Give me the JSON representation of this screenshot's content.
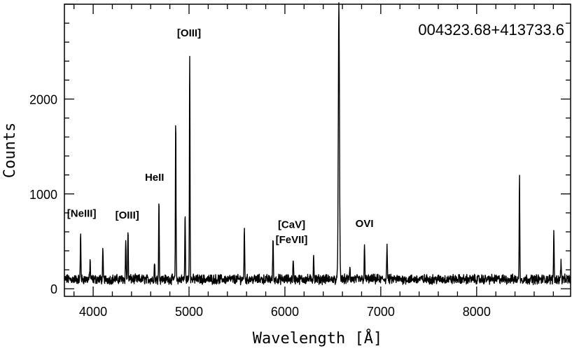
{
  "chart_data": {
    "type": "line",
    "title": "004323.68+413733.6",
    "xlabel": "Wavelength [Å]",
    "ylabel": "Counts",
    "xlim": [
      3700,
      8980
    ],
    "ylim": [
      -80,
      3000
    ],
    "x_ticks": [
      {
        "value": 4000,
        "label": "4000"
      },
      {
        "value": 5000,
        "label": "5000"
      },
      {
        "value": 6000,
        "label": "6000"
      },
      {
        "value": 7000,
        "label": "7000"
      },
      {
        "value": 8000,
        "label": "8000"
      }
    ],
    "y_ticks": [
      {
        "value": 0,
        "label": "0"
      },
      {
        "value": 1000,
        "label": "1000"
      },
      {
        "value": 2000,
        "label": "2000"
      }
    ],
    "continuum": 100,
    "noise_amplitude": 40,
    "series": [
      {
        "lines": [
          {
            "x": 3869,
            "y": 590
          },
          {
            "x": 3968,
            "y": 300
          },
          {
            "x": 4101,
            "y": 390
          },
          {
            "x": 4340,
            "y": 530
          },
          {
            "x": 4363,
            "y": 620
          },
          {
            "x": 4640,
            "y": 280
          },
          {
            "x": 4686,
            "y": 930
          },
          {
            "x": 4861,
            "y": 1820
          },
          {
            "x": 4959,
            "y": 770
          },
          {
            "x": 5007,
            "y": 2500
          },
          {
            "x": 5577,
            "y": 660
          },
          {
            "x": 5876,
            "y": 540
          },
          {
            "x": 6087,
            "y": 300
          },
          {
            "x": 6300,
            "y": 370
          },
          {
            "x": 6563,
            "y": 3000
          },
          {
            "x": 6678,
            "y": 250
          },
          {
            "x": 6830,
            "y": 470
          },
          {
            "x": 7065,
            "y": 470
          },
          {
            "x": 8447,
            "y": 1180
          },
          {
            "x": 8805,
            "y": 620
          },
          {
            "x": 8880,
            "y": 300
          }
        ]
      }
    ],
    "annotations": [
      {
        "text": "[NeIII]",
        "x": 3880,
        "y": 760
      },
      {
        "text": "[OIII]",
        "x": 4355,
        "y": 740
      },
      {
        "text": "HeII",
        "x": 4640,
        "y": 1140
      },
      {
        "text": "[OIII]",
        "x": 5000,
        "y": 2660
      },
      {
        "text": "[CaV]",
        "x": 6070,
        "y": 640
      },
      {
        "text": "[FeVII]",
        "x": 6070,
        "y": 480
      },
      {
        "text": "OVI",
        "x": 6830,
        "y": 650
      }
    ]
  }
}
